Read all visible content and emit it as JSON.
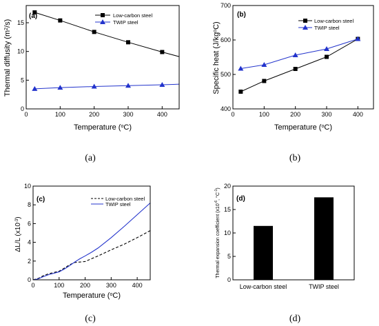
{
  "chart_data": [
    {
      "type": "line",
      "panel_label": "(a)",
      "caption": "(a)",
      "ylabel_main": "Thermal diffusity (m",
      "ylabel_sup": "2",
      "ylabel_end": "/s)",
      "xlabel_main": "Temperature (",
      "xlabel_sup": "o",
      "xlabel_end": "C)",
      "xlim": [
        0,
        450
      ],
      "ylim": [
        0,
        18
      ],
      "xticks": [
        0,
        100,
        200,
        300,
        400
      ],
      "yticks": [
        0,
        5,
        10,
        15
      ],
      "series": [
        {
          "name": "Low-carbon steel",
          "x": [
            25,
            100,
            200,
            300,
            400
          ],
          "y": [
            16.8,
            15.4,
            13.4,
            11.6,
            9.9
          ],
          "line_end": [
            450,
            9.1
          ],
          "color": "#000000",
          "marker": "square"
        },
        {
          "name": "TWIP steel",
          "x": [
            25,
            100,
            200,
            300,
            400
          ],
          "y": [
            3.5,
            3.7,
            3.9,
            4.05,
            4.2
          ],
          "line_end": [
            450,
            4.3
          ],
          "color": "#2233cc",
          "marker": "triangle"
        }
      ]
    },
    {
      "type": "line",
      "panel_label": "(b)",
      "caption": "(b)",
      "ylabel_main": "Specific heat (J/kg",
      "ylabel_sup": "o",
      "ylabel_end": "C)",
      "xlabel_main": "Temperature (",
      "xlabel_sup": "o",
      "xlabel_end": "C)",
      "xlim": [
        0,
        450
      ],
      "ylim": [
        400,
        700
      ],
      "xticks": [
        0,
        100,
        200,
        300,
        400
      ],
      "yticks": [
        400,
        500,
        600,
        700
      ],
      "series": [
        {
          "name": "Low-carbon steel",
          "x": [
            25,
            100,
            200,
            300,
            400
          ],
          "y": [
            450,
            481,
            516,
            551,
            603
          ],
          "color": "#000000",
          "marker": "square"
        },
        {
          "name": "TWIP steel",
          "x": [
            25,
            100,
            200,
            300,
            400
          ],
          "y": [
            517,
            528,
            556,
            574,
            603
          ],
          "color": "#2233cc",
          "marker": "triangle"
        }
      ]
    },
    {
      "type": "line",
      "panel_label": "(c)",
      "caption": "(c)",
      "ylabel_main": "ΔL/L (x10",
      "ylabel_sup": "-3",
      "ylabel_end": ")",
      "xlabel_main": "Temperature (",
      "xlabel_sup": "o",
      "xlabel_end": "C)",
      "xlim": [
        0,
        450
      ],
      "ylim": [
        0,
        10
      ],
      "xticks": [
        0,
        100,
        200,
        300,
        400
      ],
      "yticks": [
        0,
        2,
        4,
        6,
        8,
        10
      ],
      "series": [
        {
          "name": "Low-carbon steel",
          "dash": true,
          "color": "#000000",
          "x": [
            0,
            20,
            40,
            60,
            80,
            100,
            120,
            140,
            160,
            180,
            200,
            220,
            250,
            300,
            350,
            400,
            450
          ],
          "y": [
            0,
            0.15,
            0.45,
            0.65,
            0.78,
            0.92,
            1.25,
            1.6,
            1.85,
            1.9,
            1.95,
            2.2,
            2.55,
            3.2,
            3.8,
            4.5,
            5.25
          ]
        },
        {
          "name": "TWIP steel",
          "dash": false,
          "color": "#2233cc",
          "x": [
            0,
            20,
            40,
            60,
            80,
            100,
            120,
            140,
            160,
            180,
            200,
            225,
            250,
            300,
            350,
            400,
            450
          ],
          "y": [
            0,
            0.1,
            0.35,
            0.55,
            0.7,
            0.85,
            1.15,
            1.5,
            1.9,
            2.25,
            2.55,
            2.95,
            3.4,
            4.5,
            5.7,
            6.95,
            8.2
          ]
        }
      ]
    },
    {
      "type": "bar",
      "panel_label": "(d)",
      "caption": "(d)",
      "ylabel_main": "Thermal expansion coefficient (x10",
      "ylabel_sup": "-6",
      "ylabel_end": ", °C",
      "ylabel_sup2": "-1",
      "ylabel_end2": ")",
      "categories": [
        "Low-carbon steel",
        "TWIP steel"
      ],
      "values": [
        11.5,
        17.6
      ],
      "ylim": [
        0,
        20
      ],
      "yticks": [
        0,
        5,
        10,
        15,
        20
      ],
      "color": "#000000"
    }
  ]
}
